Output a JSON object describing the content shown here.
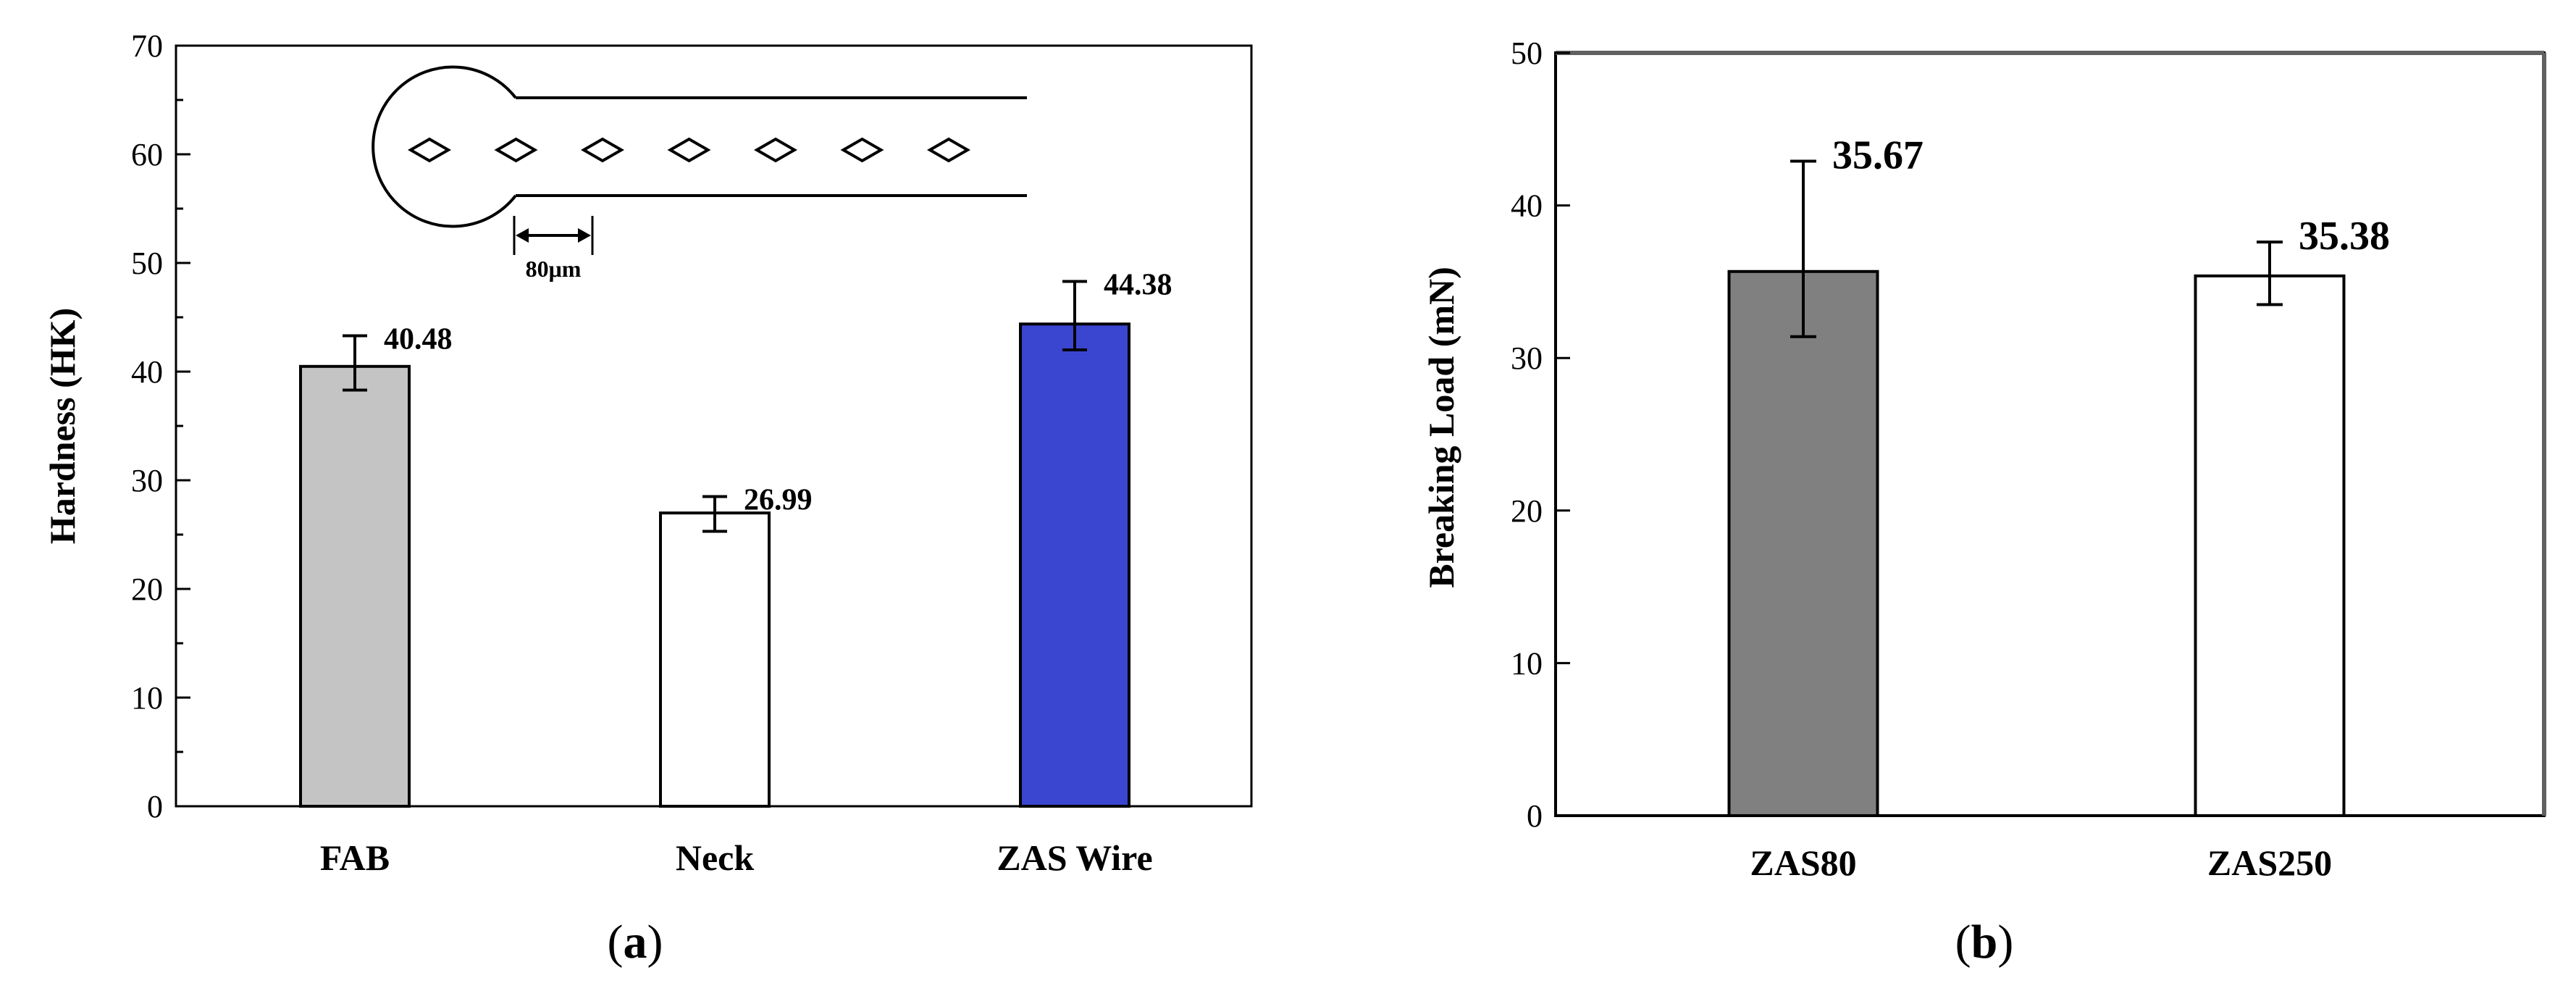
{
  "chart_data": [
    {
      "type": "bar",
      "panel": "(a)",
      "panel_letter": "a",
      "title": "",
      "xlabel": "",
      "ylabel": "Hardness (HK)",
      "ylim": [
        0,
        70
      ],
      "yticks": [
        0,
        10,
        20,
        30,
        40,
        50,
        60,
        70
      ],
      "categories": [
        "FAB",
        "Neck",
        "ZAS Wire"
      ],
      "values": [
        40.48,
        26.99,
        44.38
      ],
      "error_low": [
        38.3,
        25.3,
        42.0
      ],
      "error_high": [
        43.3,
        28.5,
        48.3
      ],
      "data_labels": [
        "40.48",
        "26.99",
        "44.38"
      ],
      "bar_colors": [
        "#c4c4c4",
        "#ffffff",
        "#3a46d0"
      ],
      "inset": {
        "indent_count": 7,
        "scale_label": "80μm"
      }
    },
    {
      "type": "bar",
      "panel": "(b)",
      "panel_letter": "b",
      "title": "",
      "xlabel": "",
      "ylabel": "Breaking Load (mN)",
      "ylim": [
        0,
        50
      ],
      "yticks": [
        0,
        10,
        20,
        30,
        40,
        50
      ],
      "categories": [
        "ZAS80",
        "ZAS250"
      ],
      "values": [
        35.67,
        35.38
      ],
      "error_low": [
        31.4,
        33.5
      ],
      "error_high": [
        42.9,
        37.6
      ],
      "data_labels": [
        "35.67",
        "35.38"
      ],
      "bar_colors": [
        "#808080",
        "#ffffff"
      ]
    }
  ]
}
